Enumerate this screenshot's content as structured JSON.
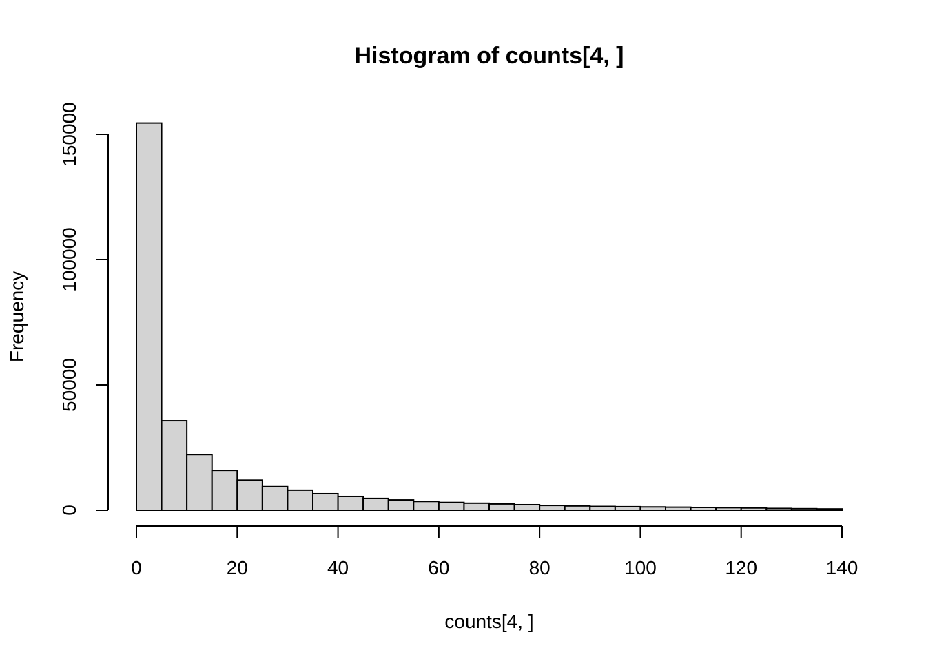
{
  "chart_data": {
    "type": "bar",
    "title": "Histogram of counts[4, ]",
    "xlabel": "counts[4, ]",
    "ylabel": "Frequency",
    "bin_width": 5,
    "bin_starts": [
      0,
      5,
      10,
      15,
      20,
      25,
      30,
      35,
      40,
      45,
      50,
      55,
      60,
      65,
      70,
      75,
      80,
      85,
      90,
      95,
      100,
      105,
      110,
      115,
      120,
      125,
      130,
      135
    ],
    "values": [
      154500,
      35700,
      22200,
      15900,
      12000,
      9400,
      8000,
      6600,
      5500,
      4700,
      4100,
      3500,
      3100,
      2800,
      2500,
      2200,
      1900,
      1700,
      1500,
      1400,
      1300,
      1200,
      1100,
      1000,
      900,
      700,
      600,
      500
    ],
    "xlim": [
      0,
      140
    ],
    "ylim": [
      0,
      160000
    ],
    "x_ticks": [
      0,
      20,
      40,
      60,
      80,
      100,
      120,
      140
    ],
    "y_ticks": [
      0,
      50000,
      100000,
      150000
    ],
    "grid": false,
    "colors": {
      "bar_fill": "#d3d3d3",
      "bar_stroke": "#000000"
    }
  }
}
